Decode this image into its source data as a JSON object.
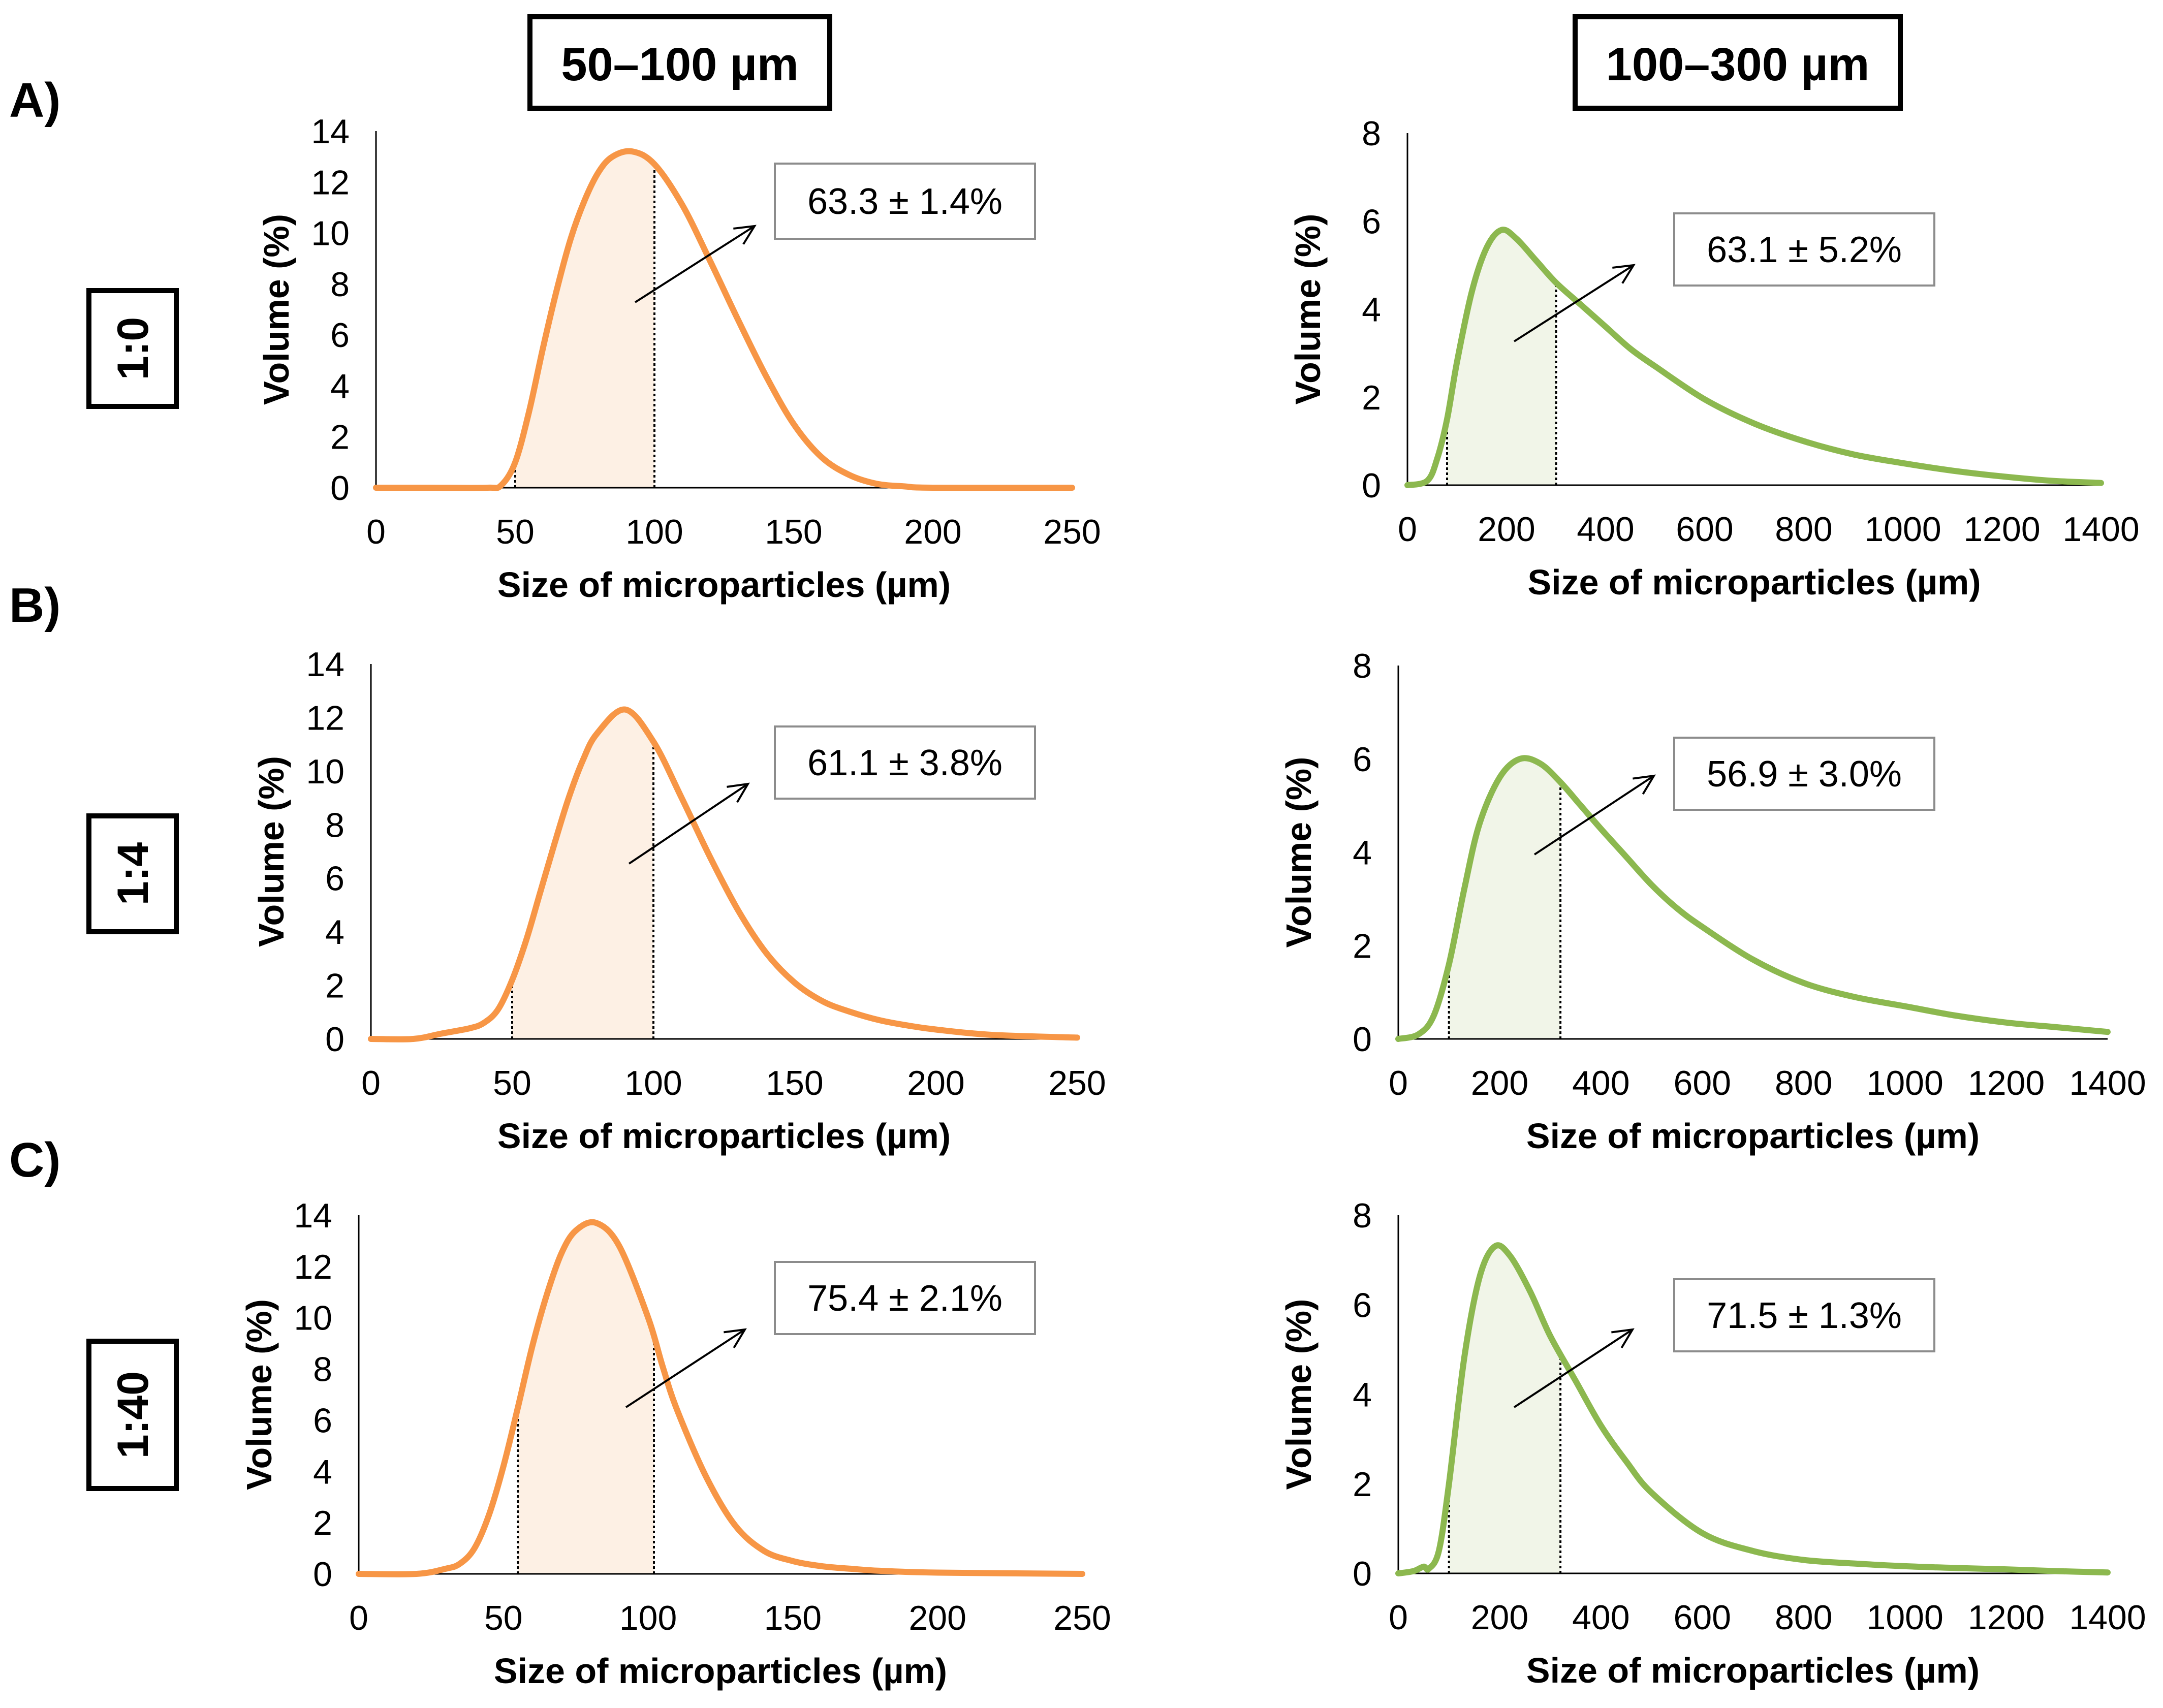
{
  "headers": [
    "50–100 µm",
    "100–300 µm"
  ],
  "rows": [
    {
      "label": "A)",
      "ratio": "1:0"
    },
    {
      "label": "B)",
      "ratio": "1:4"
    },
    {
      "label": "C)",
      "ratio": "1:40"
    }
  ],
  "colors": {
    "orange": "#F79646",
    "green": "#8CB84F",
    "orange_fill": "#FDF0E4",
    "green_fill": "#F1F5E8"
  },
  "chart_data": [
    {
      "type": "area",
      "panel": "A-left",
      "size_range": "50–100 µm",
      "ratio": "1:0",
      "xlabel": "Size of microparticles  (µm)",
      "ylabel": "Volume (%)",
      "xlim": [
        0,
        250
      ],
      "ylim": [
        0,
        14
      ],
      "xticks": [
        0,
        50,
        100,
        150,
        200,
        250
      ],
      "yticks": [
        0,
        2,
        4,
        6,
        8,
        10,
        12,
        14
      ],
      "x": [
        0,
        20,
        40,
        45,
        50,
        55,
        60,
        65,
        70,
        75,
        80,
        85,
        92,
        100,
        110,
        120,
        130,
        140,
        150,
        160,
        170,
        180,
        190,
        200,
        250
      ],
      "y": [
        0,
        0,
        0,
        0.1,
        1.0,
        3.0,
        5.5,
        7.8,
        9.8,
        11.3,
        12.4,
        13.0,
        13.2,
        12.7,
        11.1,
        8.9,
        6.6,
        4.4,
        2.5,
        1.2,
        0.5,
        0.15,
        0.05,
        0,
        0
      ],
      "shaded_range": [
        50,
        100
      ],
      "annotation": "63.3 ± 1.4%",
      "color": "orange"
    },
    {
      "type": "area",
      "panel": "A-right",
      "size_range": "100–300 µm",
      "ratio": "1:0",
      "xlabel": "Size of microparticles  (µm)",
      "ylabel": "Volume (%)",
      "xlim": [
        0,
        1400
      ],
      "ylim": [
        0,
        8
      ],
      "xticks": [
        0,
        200,
        400,
        600,
        800,
        1000,
        1200,
        1400
      ],
      "yticks": [
        0,
        2,
        4,
        6,
        8
      ],
      "x": [
        0,
        40,
        60,
        80,
        100,
        130,
        160,
        190,
        220,
        260,
        300,
        350,
        400,
        450,
        500,
        600,
        700,
        800,
        900,
        1000,
        1100,
        1200,
        1300,
        1400
      ],
      "y": [
        0,
        0.1,
        0.6,
        1.5,
        2.8,
        4.4,
        5.4,
        5.8,
        5.6,
        5.1,
        4.6,
        4.1,
        3.6,
        3.1,
        2.7,
        1.95,
        1.4,
        1.0,
        0.7,
        0.5,
        0.33,
        0.2,
        0.1,
        0.05
      ],
      "shaded_range": [
        80,
        300
      ],
      "annotation": "63.1 ± 5.2%",
      "color": "green"
    },
    {
      "type": "area",
      "panel": "B-left",
      "size_range": "50–100 µm",
      "ratio": "1:4",
      "xlabel": "Size of microparticles  (µm)",
      "ylabel": "Volume (%)",
      "xlim": [
        0,
        250
      ],
      "ylim": [
        0,
        14
      ],
      "xticks": [
        0,
        50,
        100,
        150,
        200,
        250
      ],
      "yticks": [
        0,
        2,
        4,
        6,
        8,
        10,
        12,
        14
      ],
      "x": [
        0,
        15,
        25,
        35,
        40,
        45,
        50,
        55,
        60,
        65,
        70,
        75,
        80,
        90,
        100,
        110,
        120,
        130,
        140,
        150,
        160,
        170,
        180,
        190,
        200,
        220,
        250
      ],
      "y": [
        0,
        0,
        0.2,
        0.4,
        0.6,
        1.1,
        2.2,
        3.7,
        5.5,
        7.3,
        9.0,
        10.4,
        11.4,
        12.3,
        11.1,
        9.0,
        6.8,
        4.8,
        3.2,
        2.1,
        1.4,
        1.0,
        0.7,
        0.5,
        0.35,
        0.15,
        0.05
      ],
      "shaded_range": [
        50,
        100
      ],
      "annotation": "61.1 ± 3.8%",
      "color": "orange"
    },
    {
      "type": "area",
      "panel": "B-right",
      "size_range": "100–300 µm",
      "ratio": "1:4",
      "xlabel": "Size of microparticles  (µm)",
      "ylabel": "Volume (%)",
      "xlim": [
        0,
        1400
      ],
      "ylim": [
        0,
        8
      ],
      "xticks": [
        0,
        200,
        400,
        600,
        800,
        1000,
        1200,
        1400
      ],
      "yticks": [
        0,
        2,
        4,
        6,
        8
      ],
      "x": [
        0,
        40,
        70,
        100,
        130,
        160,
        200,
        240,
        280,
        320,
        360,
        400,
        450,
        500,
        550,
        600,
        700,
        800,
        900,
        1000,
        1100,
        1200,
        1300,
        1400
      ],
      "y": [
        0,
        0.1,
        0.5,
        1.6,
        3.2,
        4.6,
        5.6,
        6.0,
        5.9,
        5.5,
        5.0,
        4.5,
        3.9,
        3.3,
        2.8,
        2.4,
        1.7,
        1.2,
        0.9,
        0.7,
        0.5,
        0.35,
        0.25,
        0.15
      ],
      "shaded_range": [
        100,
        320
      ],
      "annotation": "56.9 ± 3.0%",
      "color": "green"
    },
    {
      "type": "area",
      "panel": "C-left",
      "size_range": "50–100 µm",
      "ratio": "1:40",
      "xlabel": "Size of microparticles  (µm)",
      "ylabel": "Volume (%)",
      "xlim": [
        0,
        250
      ],
      "ylim": [
        0,
        14
      ],
      "xticks": [
        0,
        50,
        100,
        150,
        200,
        250
      ],
      "yticks": [
        0,
        2,
        4,
        6,
        8,
        10,
        12,
        14
      ],
      "x": [
        0,
        20,
        30,
        35,
        40,
        45,
        50,
        55,
        60,
        65,
        70,
        75,
        82,
        90,
        100,
        105,
        110,
        120,
        130,
        140,
        150,
        160,
        170,
        180,
        200,
        250
      ],
      "y": [
        0,
        0,
        0.2,
        0.4,
        1.0,
        2.3,
        4.2,
        6.5,
        8.9,
        10.9,
        12.5,
        13.4,
        13.7,
        12.8,
        10.0,
        8.1,
        6.4,
        3.8,
        1.9,
        0.9,
        0.5,
        0.3,
        0.2,
        0.12,
        0.05,
        0
      ],
      "shaded_range": [
        55,
        102
      ],
      "annotation": "75.4 ± 2.1%",
      "color": "orange"
    },
    {
      "type": "area",
      "panel": "C-right",
      "size_range": "100–300 µm",
      "ratio": "1:40",
      "xlabel": "Size of microparticles  (µm)",
      "ylabel": "Volume (%)",
      "xlim": [
        0,
        1400
      ],
      "ylim": [
        0,
        8
      ],
      "xticks": [
        0,
        200,
        400,
        600,
        800,
        1000,
        1200,
        1400
      ],
      "yticks": [
        0,
        2,
        4,
        6,
        8
      ],
      "x": [
        0,
        30,
        50,
        60,
        80,
        100,
        130,
        160,
        190,
        220,
        260,
        300,
        350,
        400,
        450,
        500,
        600,
        700,
        800,
        900,
        1000,
        1100,
        1200,
        1300,
        1400
      ],
      "y": [
        0,
        0.05,
        0.15,
        0.1,
        0.5,
        2.0,
        4.8,
        6.6,
        7.3,
        7.1,
        6.3,
        5.3,
        4.3,
        3.3,
        2.5,
        1.8,
        0.9,
        0.5,
        0.3,
        0.22,
        0.16,
        0.12,
        0.09,
        0.05,
        0.02
      ],
      "shaded_range": [
        100,
        320
      ],
      "annotation": "71.5 ± 1.3%",
      "color": "green"
    }
  ]
}
